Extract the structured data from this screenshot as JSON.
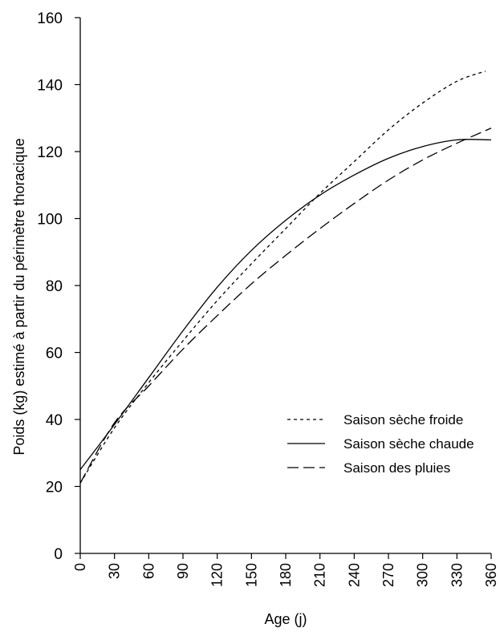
{
  "chart_data": {
    "type": "line",
    "title": "",
    "xlabel": "Age (j)",
    "ylabel": "Poids (kg) estimé à partir du périmètre thoracique",
    "xlim": [
      0,
      360
    ],
    "ylim": [
      0,
      160
    ],
    "xticks": [
      0,
      30,
      60,
      90,
      120,
      150,
      180,
      210,
      240,
      270,
      300,
      330,
      360
    ],
    "yticks": [
      0,
      20,
      40,
      60,
      80,
      100,
      120,
      140,
      160
    ],
    "grid": false,
    "legend_position": "lower-right",
    "series": [
      {
        "name": "Saison sèche froide",
        "style": "dotted",
        "x": [
          0,
          30,
          60,
          90,
          120,
          150,
          180,
          210,
          240,
          270,
          300,
          330,
          355
        ],
        "y": [
          21,
          37.5,
          51,
          63.5,
          75.5,
          86.5,
          97,
          107.5,
          117,
          126.5,
          134.5,
          141,
          144
        ]
      },
      {
        "name": "Saison sèche chaude",
        "style": "solid",
        "x": [
          0,
          30,
          60,
          90,
          120,
          150,
          180,
          210,
          240,
          270,
          300,
          330,
          360
        ],
        "y": [
          25,
          38.5,
          52.5,
          66.5,
          79.5,
          90.5,
          99.5,
          107,
          113,
          118,
          121.5,
          123.5,
          123.5
        ]
      },
      {
        "name": "Saison des pluies",
        "style": "dashed",
        "x": [
          0,
          30,
          60,
          90,
          120,
          150,
          180,
          210,
          240,
          270,
          300,
          330,
          360
        ],
        "y": [
          21,
          39,
          50,
          61,
          71,
          80.5,
          89,
          97,
          104.5,
          111.5,
          117.5,
          122.5,
          127
        ]
      }
    ]
  }
}
